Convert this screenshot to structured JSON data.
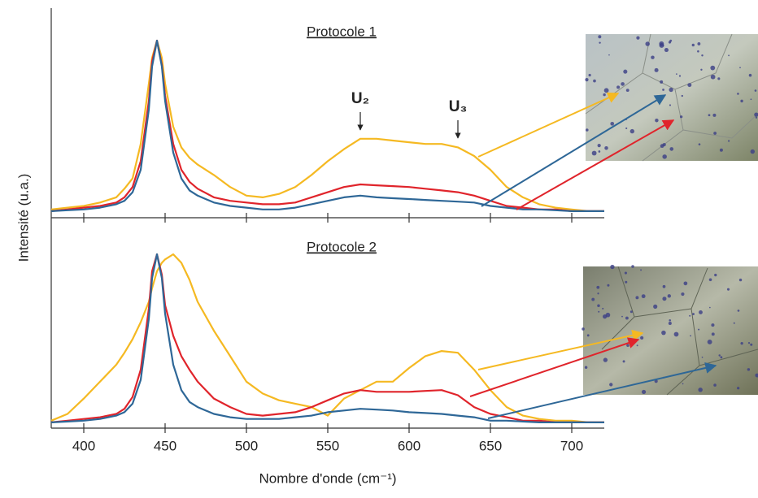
{
  "chart_data": [
    {
      "type": "line",
      "title": "Protocole 1",
      "ylabel": "Intensité (u.a.)",
      "annotations": [
        {
          "text": "U₂",
          "x": 570
        },
        {
          "text": "U₃",
          "x": 630
        }
      ],
      "x": [
        380,
        390,
        400,
        410,
        420,
        425,
        430,
        435,
        440,
        442,
        445,
        448,
        450,
        455,
        460,
        465,
        470,
        480,
        490,
        500,
        510,
        520,
        530,
        540,
        550,
        560,
        570,
        580,
        590,
        600,
        610,
        620,
        630,
        640,
        650,
        660,
        670,
        680,
        690,
        700,
        710,
        720
      ],
      "series": [
        {
          "color": "#f5b922",
          "values": [
            2,
            3,
            4,
            6,
            9,
            14,
            20,
            40,
            75,
            90,
            100,
            90,
            75,
            50,
            38,
            32,
            28,
            22,
            15,
            10,
            9,
            11,
            15,
            22,
            30,
            37,
            43,
            43,
            42,
            41,
            40,
            40,
            38,
            33,
            25,
            15,
            9,
            5,
            3,
            2,
            1,
            1
          ]
        },
        {
          "color": "#e0242b",
          "values": [
            1,
            2,
            3,
            4,
            6,
            9,
            15,
            30,
            65,
            88,
            100,
            86,
            68,
            40,
            25,
            18,
            14,
            9,
            7,
            6,
            5,
            5,
            6,
            9,
            12,
            15,
            16.5,
            16,
            15.5,
            15,
            14,
            13,
            12,
            10,
            7,
            4,
            3,
            2,
            2,
            1,
            1,
            1
          ]
        },
        {
          "color": "#2e6797",
          "values": [
            1,
            1.5,
            2,
            3,
            5,
            7,
            12,
            25,
            60,
            85,
            100,
            85,
            65,
            35,
            20,
            13,
            10,
            6,
            4,
            3,
            2,
            2,
            3,
            5,
            7,
            9,
            10,
            9,
            8.5,
            8,
            7.5,
            7,
            6.5,
            6,
            4,
            3,
            2,
            2,
            1.5,
            1,
            1,
            1
          ]
        }
      ],
      "xlim": [
        380,
        720
      ],
      "xticks": [
        400,
        450,
        500,
        550,
        600,
        650,
        700
      ],
      "ylim": [
        0,
        100
      ]
    },
    {
      "type": "line",
      "title": "Protocole 2",
      "xlabel": "Nombre d'onde (cm⁻¹)",
      "x": [
        380,
        390,
        400,
        410,
        420,
        425,
        430,
        435,
        440,
        442,
        445,
        448,
        450,
        455,
        460,
        465,
        470,
        480,
        490,
        500,
        510,
        520,
        530,
        540,
        550,
        560,
        570,
        580,
        590,
        600,
        610,
        620,
        630,
        640,
        650,
        660,
        670,
        680,
        690,
        700,
        710,
        720
      ],
      "series": [
        {
          "color": "#f5b922",
          "values": [
            2,
            6,
            15,
            25,
            35,
            42,
            50,
            60,
            72,
            80,
            90,
            95,
            97,
            100,
            95,
            85,
            72,
            55,
            40,
            25,
            18,
            14,
            12,
            10,
            5,
            15,
            20,
            25,
            25,
            33,
            40,
            43,
            42,
            32,
            20,
            10,
            5,
            3,
            2,
            2,
            1,
            1
          ]
        },
        {
          "color": "#e0242b",
          "values": [
            1,
            2,
            3,
            4,
            6,
            9,
            16,
            32,
            68,
            90,
            100,
            88,
            70,
            52,
            40,
            32,
            25,
            15,
            10,
            6,
            5,
            6,
            7,
            10,
            14,
            18,
            20,
            19,
            19,
            19,
            19.5,
            20,
            17,
            10,
            6,
            4,
            2,
            2,
            1,
            1,
            1,
            1
          ]
        },
        {
          "color": "#2e6797",
          "values": [
            1,
            1.5,
            2,
            3,
            5,
            7,
            12,
            26,
            62,
            86,
            100,
            86,
            65,
            35,
            20,
            13,
            10,
            6,
            4,
            3,
            3,
            3,
            4,
            5,
            7,
            8,
            9,
            8.5,
            8,
            7,
            6.5,
            6,
            5,
            4,
            2,
            2,
            1.5,
            1,
            1,
            1,
            1,
            1
          ]
        }
      ],
      "xlim": [
        380,
        720
      ],
      "xticks": [
        400,
        450,
        500,
        550,
        600,
        650,
        700
      ],
      "ylim": [
        0,
        100
      ]
    }
  ]
}
